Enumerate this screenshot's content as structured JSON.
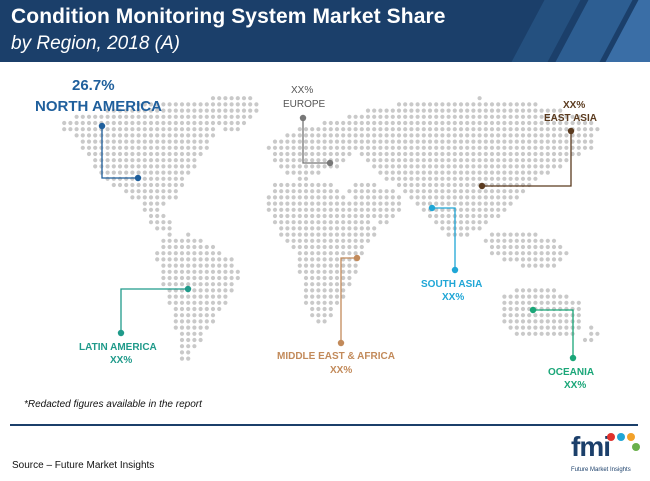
{
  "header": {
    "title": "Condition Monitoring System Market Share",
    "subtitle": "by Region, 2018 (A)"
  },
  "chart_data": {
    "type": "map",
    "title": "Condition Monitoring System Market Share",
    "subtitle": "by Region, 2018 (A)",
    "regions": [
      {
        "key": "north_america",
        "name": "NORTH AMERICA",
        "value": "26.7%",
        "color": "#1f5f9c"
      },
      {
        "key": "europe",
        "name": "EUROPE",
        "value": "XX%",
        "color": "#777777"
      },
      {
        "key": "east_asia",
        "name": "EAST ASIA",
        "value": "XX%",
        "color": "#5b3b1f"
      },
      {
        "key": "south_asia",
        "name": "SOUTH ASIA",
        "value": "XX%",
        "color": "#1fa6d6"
      },
      {
        "key": "latin_america",
        "name": "LATIN AMERICA",
        "value": "XX%",
        "color": "#1f9a8a"
      },
      {
        "key": "middle_east_africa",
        "name": "MIDDLE EAST & AFRICA",
        "value": "XX%",
        "color": "#c28a5a"
      },
      {
        "key": "oceania",
        "name": "OCEANIA",
        "value": "XX%",
        "color": "#1aa678"
      }
    ]
  },
  "footer": {
    "note": "*Redacted figures available in the report",
    "source": "Source – Future Market Insights"
  },
  "logo": {
    "text": "fmi",
    "subtitle": "Future Market Insights",
    "dot_colors": [
      "#e0322d",
      "#1fa6d6",
      "#f2a12a",
      "#6ab04c"
    ]
  }
}
